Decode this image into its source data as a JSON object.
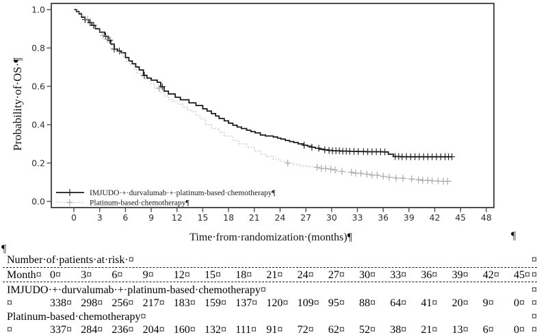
{
  "page": {
    "background": "#ffffff"
  },
  "chart": {
    "y_axis_label": "Probability·of·OS·¶",
    "x_axis_label": "Time·from·randomization·(months)¶",
    "legend": [
      {
        "label": "IMJUDO·+·durvalumab·+·platinum-based·chemotherapy¶",
        "style": "solid"
      },
      {
        "label": "Platinum-based·chemotherapy¶",
        "style": "dotted"
      }
    ],
    "colors": {
      "solid_series": "#1a1a1a",
      "dotted_series": "#a3a3a3",
      "frame": "#4d4d4d",
      "tick_text": "#2e2e2e"
    }
  },
  "chart_data": {
    "type": "line",
    "subtype": "kaplan-meier-step",
    "title": "",
    "xlabel": "Time from randomization (months)",
    "ylabel": "Probability of OS",
    "xlim": [
      -2.6,
      48.9
    ],
    "ylim": [
      -0.04,
      1.035
    ],
    "x_ticks": [
      0,
      3,
      6,
      9,
      12,
      15,
      18,
      21,
      24,
      27,
      30,
      33,
      36,
      39,
      42,
      45,
      48
    ],
    "y_ticks": [
      0.0,
      0.2,
      0.4,
      0.6,
      0.8,
      1.0
    ],
    "grid": false,
    "legend_position": "inside-bottom-left",
    "series": [
      {
        "name": "IMJUDO + durvalumab + platinum-based chemotherapy",
        "line_style": "solid",
        "color": "#1a1a1a",
        "points": [
          [
            0,
            1
          ],
          [
            0.3,
            0.99
          ],
          [
            0.6,
            0.978
          ],
          [
            0.9,
            0.96
          ],
          [
            1.3,
            0.948
          ],
          [
            1.75,
            0.932
          ],
          [
            2.1,
            0.918
          ],
          [
            2.5,
            0.9
          ],
          [
            3,
            0.882
          ],
          [
            3.6,
            0.861
          ],
          [
            4,
            0.84
          ],
          [
            4.3,
            0.82
          ],
          [
            4.7,
            0.794
          ],
          [
            5.1,
            0.784
          ],
          [
            5.5,
            0.775
          ],
          [
            6,
            0.75
          ],
          [
            6.4,
            0.732
          ],
          [
            6.8,
            0.718
          ],
          [
            7.2,
            0.701
          ],
          [
            7.6,
            0.685
          ],
          [
            8.1,
            0.657
          ],
          [
            8.5,
            0.643
          ],
          [
            9,
            0.632
          ],
          [
            9.7,
            0.621
          ],
          [
            10.1,
            0.598
          ],
          [
            10.5,
            0.575
          ],
          [
            11,
            0.56
          ],
          [
            11.8,
            0.543
          ],
          [
            12.4,
            0.53
          ],
          [
            13.4,
            0.514
          ],
          [
            14.2,
            0.5
          ],
          [
            15,
            0.483
          ],
          [
            15.5,
            0.471
          ],
          [
            16,
            0.458
          ],
          [
            16.5,
            0.445
          ],
          [
            16.9,
            0.432
          ],
          [
            17.5,
            0.42
          ],
          [
            18,
            0.408
          ],
          [
            18.5,
            0.397
          ],
          [
            19,
            0.388
          ],
          [
            19.5,
            0.38
          ],
          [
            20.1,
            0.371
          ],
          [
            20.6,
            0.364
          ],
          [
            21.1,
            0.357
          ],
          [
            21.7,
            0.346
          ],
          [
            22.3,
            0.341
          ],
          [
            23.2,
            0.336
          ],
          [
            23.7,
            0.33
          ],
          [
            24.1,
            0.325
          ],
          [
            24.6,
            0.318
          ],
          [
            25.1,
            0.312
          ],
          [
            25.6,
            0.307
          ],
          [
            26.1,
            0.3
          ],
          [
            26.7,
            0.293
          ],
          [
            27.2,
            0.288
          ],
          [
            27.7,
            0.282
          ],
          [
            28.1,
            0.277
          ],
          [
            28.6,
            0.272
          ],
          [
            29.1,
            0.269
          ],
          [
            29.6,
            0.266
          ],
          [
            30.1,
            0.264
          ],
          [
            31,
            0.262
          ],
          [
            32,
            0.261
          ],
          [
            33,
            0.26
          ],
          [
            34,
            0.259
          ],
          [
            35,
            0.259
          ],
          [
            36,
            0.258
          ],
          [
            36.6,
            0.246
          ],
          [
            37.2,
            0.234
          ],
          [
            38,
            0.233
          ],
          [
            44,
            0.233
          ]
        ],
        "censor_marks_x": [
          1.3,
          1.9,
          2.3,
          3.7,
          4.2,
          4.7,
          5.3,
          8.2,
          10.3,
          26.8,
          27.7,
          28.5,
          29.2,
          29.7,
          30.1,
          30.5,
          30.9,
          31.3,
          31.7,
          32.1,
          32.6,
          33.1,
          33.7,
          34.2,
          34.7,
          35.2,
          35.7,
          36.2,
          37.4,
          37.8,
          38.2,
          38.7,
          39.2,
          39.7,
          40.2,
          40.7,
          41.2,
          41.7,
          42.2,
          42.7,
          43.2,
          43.6,
          44
        ]
      },
      {
        "name": "Platinum-based chemotherapy",
        "line_style": "dotted",
        "color": "#a3a3a3",
        "points": [
          [
            0,
            1
          ],
          [
            0.3,
            0.992
          ],
          [
            0.6,
            0.982
          ],
          [
            0.9,
            0.968
          ],
          [
            1.3,
            0.95
          ],
          [
            1.75,
            0.932
          ],
          [
            2.1,
            0.92
          ],
          [
            2.5,
            0.906
          ],
          [
            3,
            0.88
          ],
          [
            3.3,
            0.865
          ],
          [
            3.7,
            0.845
          ],
          [
            4.1,
            0.825
          ],
          [
            4.4,
            0.81
          ],
          [
            4.8,
            0.795
          ],
          [
            5.2,
            0.775
          ],
          [
            5.7,
            0.755
          ],
          [
            6.1,
            0.73
          ],
          [
            6.5,
            0.712
          ],
          [
            7,
            0.69
          ],
          [
            7.3,
            0.668
          ],
          [
            7.8,
            0.65
          ],
          [
            8.2,
            0.638
          ],
          [
            8.9,
            0.614
          ],
          [
            9.4,
            0.59
          ],
          [
            10,
            0.567
          ],
          [
            10.5,
            0.55
          ],
          [
            11,
            0.532
          ],
          [
            11.5,
            0.52
          ],
          [
            12.1,
            0.507
          ],
          [
            12.7,
            0.49
          ],
          [
            13.2,
            0.478
          ],
          [
            13.7,
            0.468
          ],
          [
            14.2,
            0.448
          ],
          [
            14.7,
            0.43
          ],
          [
            15.3,
            0.4
          ],
          [
            16,
            0.38
          ],
          [
            16.9,
            0.361
          ],
          [
            17.5,
            0.34
          ],
          [
            18.5,
            0.318
          ],
          [
            19.2,
            0.3
          ],
          [
            20.1,
            0.282
          ],
          [
            21,
            0.262
          ],
          [
            21.7,
            0.246
          ],
          [
            22.4,
            0.234
          ],
          [
            23.2,
            0.221
          ],
          [
            24,
            0.208
          ],
          [
            24.8,
            0.2
          ],
          [
            25.6,
            0.192
          ],
          [
            26.3,
            0.186
          ],
          [
            27,
            0.182
          ],
          [
            27.9,
            0.178
          ],
          [
            28.6,
            0.172
          ],
          [
            29.4,
            0.168
          ],
          [
            30,
            0.164
          ],
          [
            30.6,
            0.156
          ],
          [
            31.5,
            0.152
          ],
          [
            32.5,
            0.147
          ],
          [
            33.5,
            0.142
          ],
          [
            34.5,
            0.137
          ],
          [
            35.5,
            0.131
          ],
          [
            36.5,
            0.126
          ],
          [
            37.5,
            0.121
          ],
          [
            38.5,
            0.117
          ],
          [
            39.5,
            0.113
          ],
          [
            40.5,
            0.11
          ],
          [
            41.5,
            0.108
          ],
          [
            42.3,
            0.106
          ],
          [
            43,
            0.105
          ],
          [
            44,
            0.104
          ]
        ],
        "censor_marks_x": [
          1.6,
          3.4,
          3.9,
          9.9,
          24.9,
          28.3,
          28.8,
          29.3,
          29.9,
          30.4,
          31.2,
          32.3,
          32.8,
          33.4,
          34.1,
          34.7,
          35.3,
          36,
          36.7,
          37.5,
          38.3,
          39.3,
          40.1,
          40.6,
          41.2,
          41.7,
          42.4,
          43,
          43.5
        ]
      }
    ],
    "at_risk": {
      "months": [
        0,
        3,
        6,
        9,
        12,
        15,
        18,
        21,
        24,
        27,
        30,
        33,
        36,
        39,
        42,
        45
      ],
      "groups": [
        {
          "name": "IMJUDO + durvalumab + platinum-based chemotherapy",
          "counts": [
            338,
            298,
            256,
            217,
            183,
            159,
            137,
            120,
            109,
            95,
            88,
            64,
            41,
            20,
            9,
            0
          ]
        },
        {
          "name": "Platinum-based chemotherapy",
          "counts": [
            337,
            284,
            236,
            204,
            160,
            132,
            111,
            91,
            72,
            62,
            52,
            38,
            21,
            13,
            6,
            0
          ]
        }
      ]
    }
  },
  "marks": {
    "pilcrow": "¶",
    "cell_end": "¤"
  },
  "risk_table": {
    "title": "Number·of·patients·at·risk·¤",
    "month_label": "Month¤",
    "group_labels": [
      "IMJUDO·+·durvalumab·+·platinum-based·chemotherapy¤",
      "Platinum-based·chemotherapy¤"
    ],
    "empty_cell": "¤"
  }
}
